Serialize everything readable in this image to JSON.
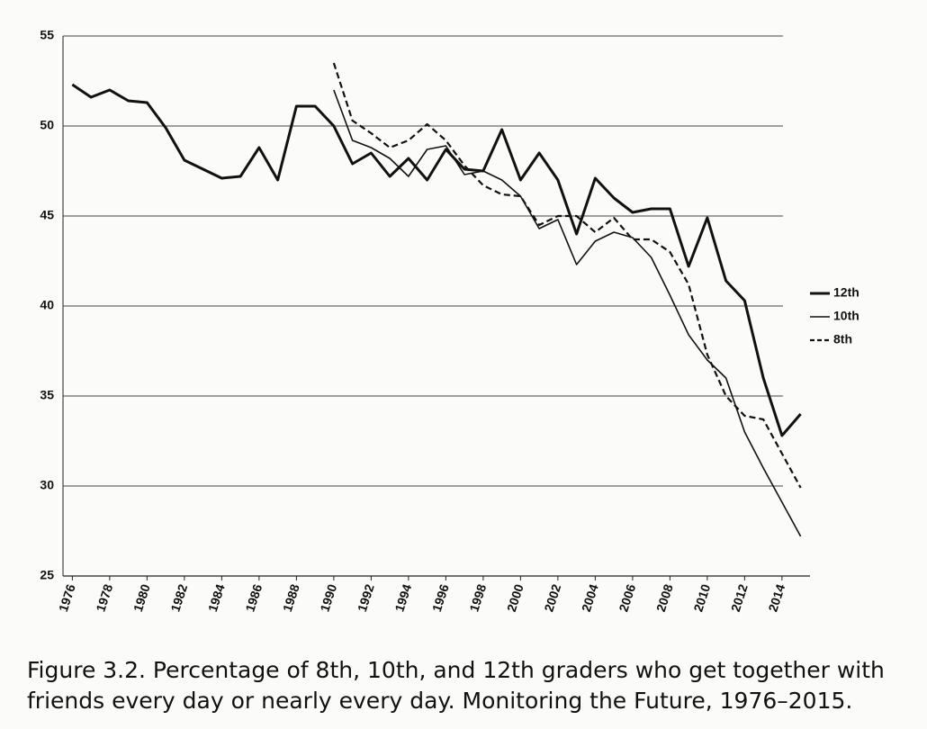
{
  "chart_data": {
    "type": "line",
    "x": [
      1976,
      1977,
      1978,
      1979,
      1980,
      1981,
      1982,
      1983,
      1984,
      1985,
      1986,
      1987,
      1988,
      1989,
      1990,
      1991,
      1992,
      1993,
      1994,
      1995,
      1996,
      1997,
      1998,
      1999,
      2000,
      2001,
      2002,
      2003,
      2004,
      2005,
      2006,
      2007,
      2008,
      2009,
      2010,
      2011,
      2012,
      2013,
      2014,
      2015
    ],
    "series": [
      {
        "name": "12th",
        "color": "#111111",
        "line_width": 3,
        "dash": false,
        "values": [
          52.3,
          51.6,
          52.0,
          51.4,
          51.3,
          49.9,
          48.1,
          47.6,
          47.1,
          47.2,
          48.8,
          47.0,
          51.1,
          51.1,
          50.0,
          47.9,
          48.5,
          47.2,
          48.2,
          47.0,
          48.7,
          47.6,
          47.5,
          49.8,
          47.0,
          48.5,
          47.0,
          44.0,
          47.1,
          46.0,
          45.2,
          45.4,
          45.4,
          42.2,
          44.9,
          41.4,
          40.3,
          36.0,
          32.8,
          34.0
        ]
      },
      {
        "name": "10th",
        "color": "#111111",
        "line_width": 1.6,
        "dash": false,
        "values": [
          null,
          null,
          null,
          null,
          null,
          null,
          null,
          null,
          null,
          null,
          null,
          null,
          null,
          null,
          52.0,
          49.2,
          48.8,
          48.2,
          47.2,
          48.7,
          48.9,
          47.3,
          47.5,
          47.0,
          46.1,
          44.3,
          44.8,
          42.3,
          43.6,
          44.1,
          43.8,
          42.7,
          40.6,
          38.4,
          37.0,
          36.0,
          33.0,
          31.0,
          29.1,
          27.2
        ]
      },
      {
        "name": "8th",
        "color": "#111111",
        "line_width": 2.2,
        "dash": true,
        "values": [
          null,
          null,
          null,
          null,
          null,
          null,
          null,
          null,
          null,
          null,
          null,
          null,
          null,
          null,
          53.5,
          50.3,
          49.6,
          48.8,
          49.2,
          50.1,
          49.2,
          47.8,
          46.7,
          46.2,
          46.1,
          44.5,
          45.0,
          45.0,
          44.1,
          44.9,
          43.7,
          43.7,
          43.0,
          41.2,
          37.3,
          35.0,
          33.9,
          33.7,
          31.8,
          29.9
        ]
      }
    ],
    "xlim": [
      1975.5,
      2015.5
    ],
    "xticks": [
      1976,
      1978,
      1980,
      1982,
      1984,
      1986,
      1988,
      1990,
      1992,
      1994,
      1996,
      1998,
      2000,
      2002,
      2004,
      2006,
      2008,
      2010,
      2012,
      2014
    ],
    "ylim": [
      25,
      55
    ],
    "yticks": [
      25,
      30,
      35,
      40,
      45,
      50,
      55
    ],
    "grid": true,
    "legend": "right"
  },
  "caption": "Figure 3.2. Percentage of 8th, 10th, and 12th graders who get together with friends every day or nearly every day. Monitoring the Future, 1976–2015."
}
